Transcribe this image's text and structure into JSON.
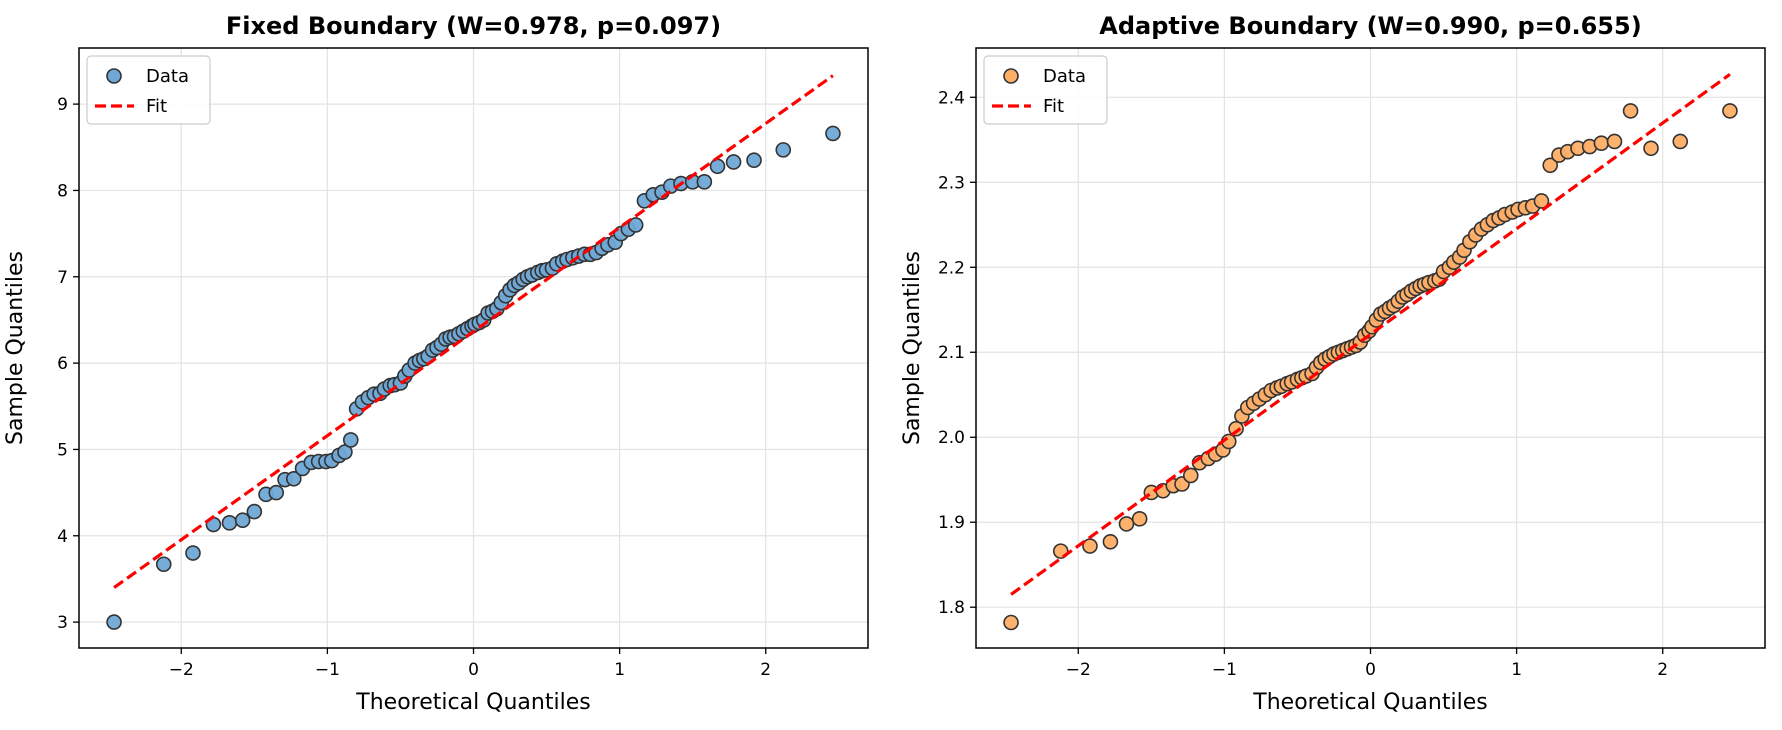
{
  "chart_data": [
    {
      "type": "scatter",
      "title": "Fixed Boundary (W=0.978, p=0.097)",
      "xlabel": "Theoretical Quantiles",
      "ylabel": "Sample Quantiles",
      "xlim": [
        -2.7,
        2.7
      ],
      "ylim": [
        2.7,
        9.65
      ],
      "xticks": [
        -2,
        -1,
        0,
        1,
        2
      ],
      "yticks": [
        3,
        4,
        5,
        6,
        7,
        8,
        9
      ],
      "grid": true,
      "legend_position": "upper-left",
      "legend": [
        "Data",
        "Fit"
      ],
      "point_color": "#6fa8d6",
      "fit_color": "#ff0000",
      "series": [
        {
          "name": "Data",
          "x": [
            -2.46,
            -2.12,
            -1.92,
            -1.78,
            -1.67,
            -1.58,
            -1.5,
            -1.42,
            -1.35,
            -1.29,
            -1.23,
            -1.17,
            -1.11,
            -1.06,
            -1.01,
            -0.97,
            -0.92,
            -0.88,
            -0.84,
            -0.8,
            -0.76,
            -0.72,
            -0.68,
            -0.64,
            -0.61,
            -0.57,
            -0.54,
            -0.5,
            -0.47,
            -0.44,
            -0.4,
            -0.37,
            -0.34,
            -0.31,
            -0.28,
            -0.25,
            -0.22,
            -0.19,
            -0.16,
            -0.13,
            -0.1,
            -0.07,
            -0.04,
            -0.01,
            0.01,
            0.04,
            0.07,
            0.1,
            0.13,
            0.16,
            0.19,
            0.22,
            0.25,
            0.28,
            0.31,
            0.34,
            0.37,
            0.4,
            0.44,
            0.47,
            0.5,
            0.54,
            0.57,
            0.61,
            0.64,
            0.68,
            0.72,
            0.76,
            0.8,
            0.84,
            0.88,
            0.92,
            0.97,
            1.01,
            1.06,
            1.11,
            1.17,
            1.23,
            1.29,
            1.35,
            1.42,
            1.5,
            1.58,
            1.67,
            1.78,
            1.92,
            2.12,
            2.46
          ],
          "y": [
            3.0,
            3.67,
            3.8,
            4.13,
            4.15,
            4.18,
            4.28,
            4.48,
            4.5,
            4.65,
            4.66,
            4.78,
            4.85,
            4.86,
            4.86,
            4.87,
            4.93,
            4.97,
            5.11,
            5.47,
            5.55,
            5.6,
            5.64,
            5.65,
            5.7,
            5.74,
            5.75,
            5.77,
            5.85,
            5.92,
            6.0,
            6.03,
            6.05,
            6.08,
            6.15,
            6.18,
            6.22,
            6.28,
            6.3,
            6.31,
            6.34,
            6.37,
            6.4,
            6.43,
            6.45,
            6.47,
            6.5,
            6.58,
            6.6,
            6.63,
            6.7,
            6.78,
            6.85,
            6.9,
            6.93,
            6.97,
            7.0,
            7.02,
            7.05,
            7.07,
            7.08,
            7.1,
            7.15,
            7.18,
            7.2,
            7.22,
            7.24,
            7.26,
            7.26,
            7.28,
            7.33,
            7.37,
            7.4,
            7.5,
            7.55,
            7.6,
            7.88,
            7.95,
            7.98,
            8.05,
            8.08,
            8.1,
            8.1,
            8.28,
            8.33,
            8.35,
            8.47,
            8.66
          ]
        },
        {
          "name": "Fit",
          "x": [
            -2.46,
            2.46
          ],
          "y": [
            3.4,
            9.33
          ]
        }
      ]
    },
    {
      "type": "scatter",
      "title": "Adaptive Boundary (W=0.990, p=0.655)",
      "xlabel": "Theoretical Quantiles",
      "ylabel": "Sample Quantiles",
      "xlim": [
        -2.7,
        2.7
      ],
      "ylim": [
        1.752,
        2.458
      ],
      "xticks": [
        -2,
        -1,
        0,
        1,
        2
      ],
      "yticks": [
        1.8,
        1.9,
        2.0,
        2.1,
        2.2,
        2.3,
        2.4
      ],
      "ytick_labels": [
        "1.8",
        "1.9",
        "2.0",
        "2.1",
        "2.2",
        "2.3",
        "2.4"
      ],
      "grid": true,
      "legend_position": "upper-left",
      "legend": [
        "Data",
        "Fit"
      ],
      "point_color": "#ffae66",
      "fit_color": "#ff0000",
      "series": [
        {
          "name": "Data",
          "x": [
            -2.46,
            -2.12,
            -1.92,
            -1.78,
            -1.67,
            -1.58,
            -1.5,
            -1.42,
            -1.35,
            -1.29,
            -1.23,
            -1.17,
            -1.11,
            -1.06,
            -1.01,
            -0.97,
            -0.92,
            -0.88,
            -0.84,
            -0.8,
            -0.76,
            -0.72,
            -0.68,
            -0.64,
            -0.61,
            -0.57,
            -0.54,
            -0.5,
            -0.47,
            -0.44,
            -0.4,
            -0.37,
            -0.34,
            -0.31,
            -0.28,
            -0.25,
            -0.22,
            -0.19,
            -0.16,
            -0.13,
            -0.1,
            -0.07,
            -0.04,
            -0.01,
            0.01,
            0.04,
            0.07,
            0.1,
            0.13,
            0.16,
            0.19,
            0.22,
            0.25,
            0.28,
            0.31,
            0.34,
            0.37,
            0.4,
            0.44,
            0.47,
            0.5,
            0.54,
            0.57,
            0.61,
            0.64,
            0.68,
            0.72,
            0.76,
            0.8,
            0.84,
            0.88,
            0.92,
            0.97,
            1.01,
            1.06,
            1.11,
            1.17,
            1.23,
            1.29,
            1.35,
            1.42,
            1.5,
            1.58,
            1.67,
            1.78,
            1.92,
            2.12,
            2.46
          ],
          "y": [
            1.782,
            1.866,
            1.872,
            1.877,
            1.898,
            1.904,
            1.935,
            1.937,
            1.943,
            1.945,
            1.955,
            1.97,
            1.975,
            1.98,
            1.985,
            1.995,
            2.01,
            2.025,
            2.035,
            2.04,
            2.045,
            2.05,
            2.055,
            2.058,
            2.06,
            2.063,
            2.065,
            2.068,
            2.07,
            2.072,
            2.075,
            2.082,
            2.088,
            2.092,
            2.095,
            2.098,
            2.1,
            2.102,
            2.104,
            2.106,
            2.108,
            2.112,
            2.12,
            2.125,
            2.13,
            2.138,
            2.145,
            2.148,
            2.152,
            2.155,
            2.16,
            2.165,
            2.168,
            2.172,
            2.175,
            2.178,
            2.18,
            2.182,
            2.184,
            2.186,
            2.195,
            2.2,
            2.206,
            2.212,
            2.22,
            2.23,
            2.238,
            2.245,
            2.25,
            2.255,
            2.258,
            2.262,
            2.265,
            2.268,
            2.27,
            2.272,
            2.278,
            2.32,
            2.332,
            2.336,
            2.34,
            2.342,
            2.346,
            2.348,
            2.384,
            2.34,
            2.348,
            2.384
          ]
        },
        {
          "name": "Fit",
          "x": [
            -2.46,
            2.46
          ],
          "y": [
            1.815,
            2.427
          ]
        }
      ]
    }
  ]
}
